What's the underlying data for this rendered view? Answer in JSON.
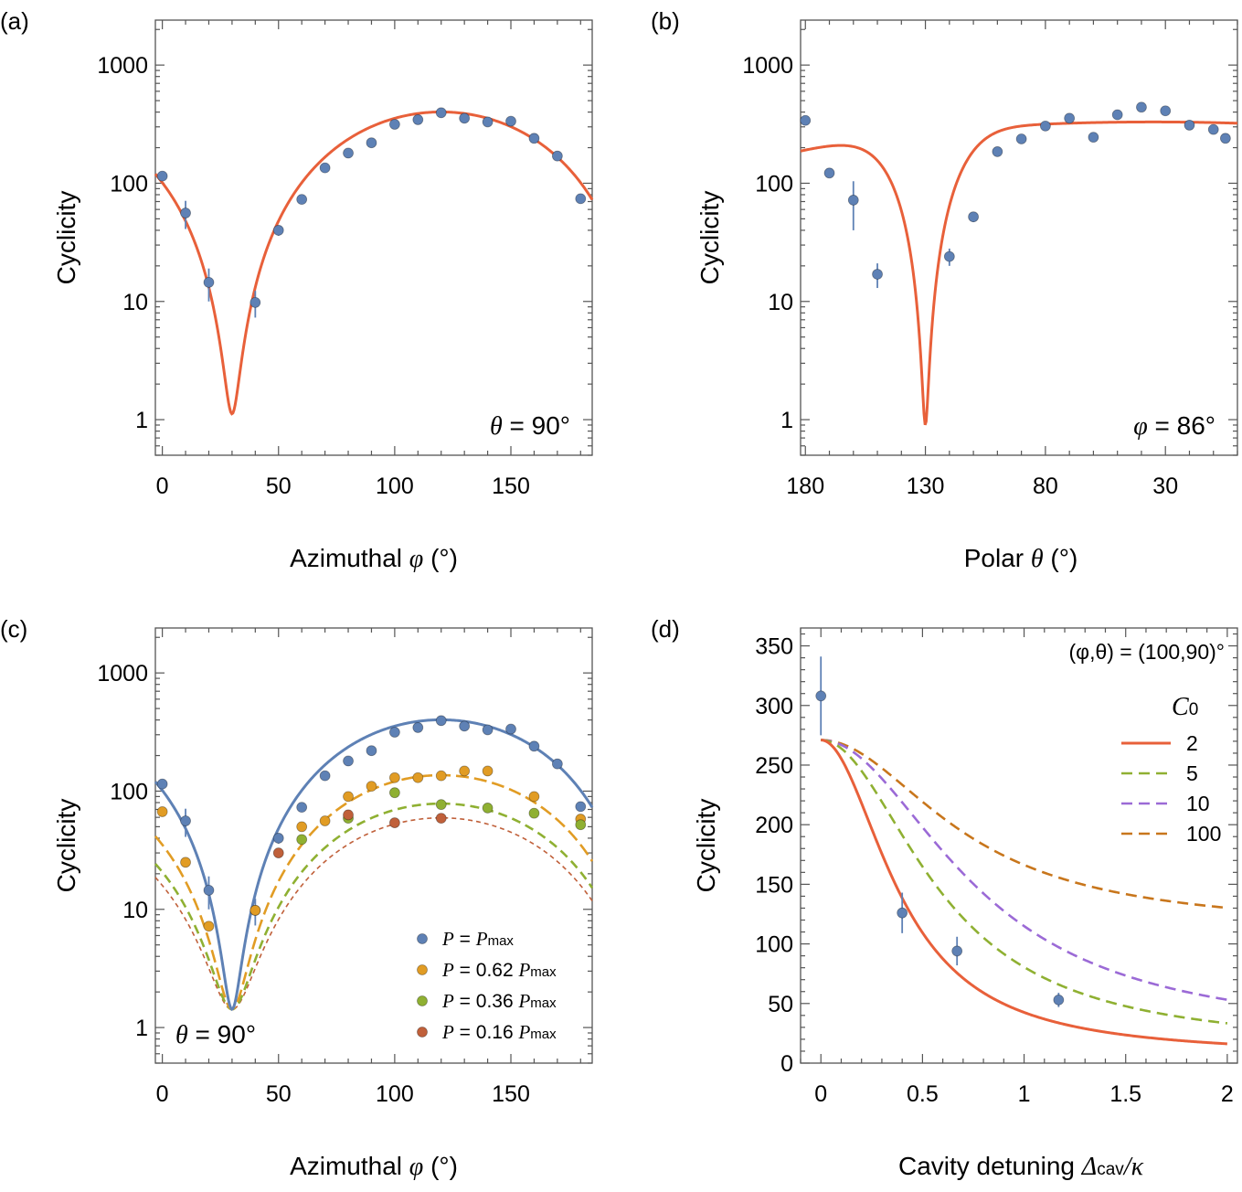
{
  "colors": {
    "orange_fit": "#e8603a",
    "blue": "#5e81b5",
    "gold": "#e19c24",
    "green": "#8fb032",
    "brown": "#c0603a",
    "purple": "#9b6ad6",
    "dark_orange": "#c8761c"
  },
  "chart_data": [
    {
      "panel": "(a)",
      "type": "scatter",
      "yscale": "log",
      "ylabel": "Cyclicity",
      "xlabel_text": "Azimuthal",
      "xlabel_symbol": "φ",
      "xlabel_unit": "(°)",
      "xlim": [
        -3,
        185
      ],
      "ylim": [
        0.5,
        2400
      ],
      "xticks": [
        0,
        50,
        100,
        150
      ],
      "yticks": [
        1,
        10,
        100,
        1000
      ],
      "annotation_symbol": "θ",
      "annotation_value": "= 90°",
      "points": {
        "x": [
          0,
          10,
          20,
          40,
          50,
          60,
          70,
          80,
          90,
          100,
          110,
          120,
          130,
          140,
          150,
          160,
          170,
          180
        ],
        "y": [
          115,
          56,
          14.5,
          9.8,
          40,
          73,
          135,
          180,
          220,
          315,
          345,
          395,
          355,
          330,
          335,
          240,
          170,
          74
        ],
        "err": [
          8,
          15,
          4.5,
          2.5,
          4,
          5,
          6,
          7,
          8,
          12,
          12,
          14,
          12,
          12,
          12,
          10,
          8,
          6
        ]
      },
      "fit": {
        "name": "model",
        "amp": 400,
        "floor": 0.0028,
        "xmin": 30,
        "xmax": 120
      }
    },
    {
      "panel": "(b)",
      "type": "scatter",
      "yscale": "log",
      "ylabel": "Cyclicity",
      "xlabel_text": "Polar",
      "xlabel_symbol": "θ",
      "xlabel_unit": "(°)",
      "xlim": [
        182,
        0
      ],
      "ylim": [
        0.5,
        2400
      ],
      "xticks": [
        180,
        130,
        80,
        30
      ],
      "yticks": [
        1,
        10,
        100,
        1000
      ],
      "annotation_symbol": "φ",
      "annotation_value": "= 86°",
      "points": {
        "x": [
          180,
          170,
          160,
          150,
          140,
          130,
          120,
          110,
          100,
          90,
          80,
          70,
          60,
          50,
          40,
          30,
          20,
          10,
          5
        ],
        "y": [
          340,
          122,
          72,
          17,
          null,
          null,
          24,
          52,
          185,
          237,
          305,
          355,
          245,
          380,
          440,
          410,
          310,
          285,
          240
        ],
        "err": [
          20,
          8,
          32,
          4,
          0,
          0,
          4,
          5,
          8,
          10,
          12,
          12,
          10,
          14,
          16,
          14,
          12,
          10,
          10
        ]
      },
      "fit": {
        "name": "model",
        "center": 130,
        "width": 14,
        "base": 330,
        "floor": 0.0033
      }
    },
    {
      "panel": "(c)",
      "type": "scatter",
      "yscale": "log",
      "ylabel": "Cyclicity",
      "xlabel_text": "Azimuthal",
      "xlabel_symbol": "φ",
      "xlabel_unit": "(°)",
      "xlim": [
        -3,
        185
      ],
      "ylim": [
        0.5,
        2400
      ],
      "xticks": [
        0,
        50,
        100,
        150
      ],
      "yticks": [
        1,
        10,
        100,
        1000
      ],
      "annotation_symbol": "θ",
      "annotation_value": "= 90°",
      "series": [
        {
          "name_prefix": "P",
          "name_eq": " = ",
          "name_factor": "",
          "name_sym": "P",
          "name_sub": "max",
          "color_key": "blue",
          "amp": 400,
          "dash": "",
          "x": [
            0,
            10,
            20,
            40,
            50,
            60,
            70,
            80,
            90,
            100,
            110,
            120,
            130,
            140,
            150,
            160,
            170,
            180
          ],
          "y": [
            115,
            56,
            14.5,
            9.8,
            40,
            73,
            135,
            180,
            220,
            315,
            345,
            395,
            355,
            330,
            335,
            240,
            170,
            74
          ],
          "err": [
            8,
            15,
            4.5,
            2.5,
            4,
            5,
            6,
            7,
            8,
            12,
            12,
            14,
            12,
            12,
            12,
            10,
            8,
            6
          ]
        },
        {
          "name_prefix": "P",
          "name_eq": " = ",
          "name_factor": "0.62 ",
          "name_sym": "P",
          "name_sub": "max",
          "color_key": "gold",
          "amp": 135,
          "dash": "14,6",
          "x": [
            0,
            10,
            20,
            40,
            60,
            70,
            80,
            90,
            100,
            110,
            120,
            130,
            140,
            160,
            180
          ],
          "y": [
            67,
            25,
            7.2,
            9.8,
            50,
            56,
            90,
            110,
            130,
            130,
            135,
            148,
            148,
            90,
            58
          ],
          "err": [
            3,
            2,
            0.6,
            0.8,
            3,
            3,
            4,
            5,
            6,
            6,
            6,
            6,
            6,
            4,
            3
          ]
        },
        {
          "name_prefix": "P",
          "name_eq": " = ",
          "name_factor": "0.36 ",
          "name_sym": "P",
          "name_sub": "max",
          "color_key": "green",
          "amp": 77,
          "dash": "10,6",
          "x": [
            60,
            80,
            100,
            120,
            140,
            160,
            180
          ],
          "y": [
            39,
            59,
            97,
            77,
            72,
            65,
            52
          ],
          "err": [
            2,
            3,
            4,
            4,
            3,
            3,
            3
          ]
        },
        {
          "name_prefix": "P",
          "name_eq": " = ",
          "name_factor": "0.16 ",
          "name_sym": "P",
          "name_sub": "max",
          "color_key": "brown",
          "amp": 58,
          "dash": "5,4",
          "x": [
            50,
            80,
            100,
            120
          ],
          "y": [
            30,
            63,
            54,
            59
          ],
          "err": [
            2,
            3,
            3,
            3
          ]
        }
      ]
    },
    {
      "panel": "(d)",
      "type": "line",
      "yscale": "linear",
      "ylabel": "Cyclicity",
      "xlabel_text": "Cavity detuning",
      "xlabel_symbol": "Δ",
      "xlabel_sub": "cav",
      "xlabel_over": "/κ",
      "xlim": [
        -0.1,
        2.05
      ],
      "ylim": [
        0,
        365
      ],
      "xticks": [
        0,
        0.5,
        1,
        1.5,
        2
      ],
      "xtick_labels": [
        "0",
        "0.5",
        "1",
        "1.5",
        "2"
      ],
      "yticks": [
        0,
        50,
        100,
        150,
        200,
        250,
        300,
        350
      ],
      "annotation_text": "(φ,θ) = (100,90)°",
      "legend_title": "C",
      "legend_title_sub": "0",
      "points": {
        "x": [
          0,
          0.4,
          0.67,
          1.17
        ],
        "y": [
          308,
          126,
          94,
          53
        ],
        "err": [
          33,
          17,
          12,
          6
        ]
      },
      "series": [
        {
          "name": "2",
          "color_key": "orange_fit",
          "dash": "",
          "y0": 271,
          "yinf": 6,
          "w": 0.4
        },
        {
          "name": "5",
          "color_key": "green",
          "dash": "12,7",
          "y0": 271,
          "yinf": 12,
          "w": 0.6
        },
        {
          "name": "10",
          "color_key": "purple",
          "dash": "12,7",
          "y0": 271,
          "yinf": 20,
          "w": 0.78
        },
        {
          "name": "100",
          "color_key": "dark_orange",
          "dash": "12,7",
          "y0": 271,
          "yinf": 112,
          "w": 0.72
        }
      ]
    }
  ]
}
